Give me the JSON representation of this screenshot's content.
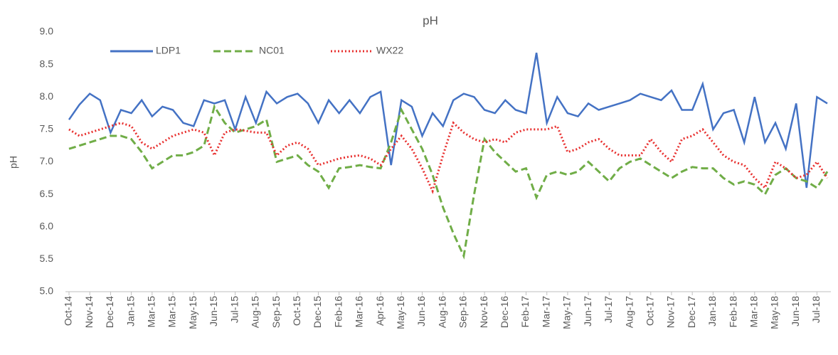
{
  "chart_data": {
    "type": "line",
    "title": "pH",
    "y_label": "pH",
    "categories": [
      "Oct-14",
      null,
      "Nov-14",
      null,
      "Dec-14",
      null,
      "Jan-15",
      null,
      "Mar-15",
      null,
      "Mar-15",
      null,
      "May-15",
      null,
      "Jun-15",
      null,
      "Jul-15",
      null,
      "Aug-15",
      null,
      "Sep-15",
      null,
      "Oct-15",
      null,
      "Dec-15",
      null,
      "Feb-16",
      null,
      "Mar-16",
      null,
      "Apr-16",
      null,
      "May-16",
      null,
      "Jun-16",
      null,
      "Aug-16",
      null,
      "Sep-16",
      null,
      "Nov-16",
      null,
      "Dec-16",
      null,
      "Feb-17",
      null,
      "Mar-17",
      null,
      "May-17",
      null,
      "Jun-17",
      null,
      "Jul-17",
      null,
      "Aug-17",
      null,
      "Oct-17",
      null,
      "Nov-17",
      null,
      "Dec-17",
      null,
      "Jan-18",
      null,
      "Feb-18",
      null,
      "Mar-18",
      null,
      "May-18",
      null,
      "Jun-18",
      null,
      "Jul-18",
      null
    ],
    "series": [
      {
        "name": "LDP1",
        "color": "#4472c4",
        "dash": "solid",
        "values": [
          7.65,
          7.88,
          8.05,
          7.95,
          7.45,
          7.8,
          7.75,
          7.95,
          7.7,
          7.85,
          7.8,
          7.6,
          7.55,
          7.95,
          7.9,
          7.95,
          7.5,
          8.0,
          7.6,
          8.08,
          7.9,
          8.0,
          8.05,
          7.9,
          7.6,
          7.95,
          7.75,
          7.95,
          7.75,
          8.0,
          8.08,
          6.95,
          7.95,
          7.85,
          7.4,
          7.75,
          7.55,
          7.95,
          8.05,
          8.0,
          7.8,
          7.75,
          7.95,
          7.8,
          7.75,
          8.68,
          7.6,
          8.0,
          7.75,
          7.7,
          7.9,
          7.8,
          7.85,
          7.9,
          7.95,
          8.05,
          8.0,
          7.95,
          8.1,
          7.8,
          7.8,
          8.2,
          7.5,
          7.75,
          7.8,
          7.3,
          8.0,
          7.3,
          7.6,
          7.2,
          7.9,
          6.6,
          8.0,
          7.9
        ]
      },
      {
        "name": "NC01",
        "color": "#70ad47",
        "dash": "dashed",
        "values": [
          7.2,
          7.25,
          7.3,
          7.35,
          7.4,
          7.4,
          7.35,
          7.15,
          6.9,
          7.0,
          7.1,
          7.1,
          7.15,
          7.25,
          7.85,
          7.6,
          7.45,
          7.5,
          7.55,
          7.65,
          7.0,
          7.05,
          7.1,
          6.95,
          6.85,
          6.6,
          6.9,
          6.92,
          6.95,
          6.92,
          6.9,
          7.3,
          7.8,
          7.5,
          7.2,
          6.8,
          6.3,
          5.9,
          5.55,
          6.5,
          7.35,
          7.15,
          7.0,
          6.85,
          6.9,
          6.45,
          6.8,
          6.85,
          6.8,
          6.85,
          7.0,
          6.85,
          6.7,
          6.9,
          7.0,
          7.05,
          6.95,
          6.85,
          6.75,
          6.85,
          6.92,
          6.9,
          6.9,
          6.75,
          6.65,
          6.7,
          6.65,
          6.5,
          6.8,
          6.9,
          6.75,
          6.7,
          6.6,
          6.85
        ]
      },
      {
        "name": "WX22",
        "color": "#e8302f",
        "dash": "dotted",
        "values": [
          7.5,
          7.4,
          7.45,
          7.5,
          7.55,
          7.6,
          7.55,
          7.3,
          7.2,
          7.3,
          7.4,
          7.45,
          7.5,
          7.45,
          7.1,
          7.45,
          7.5,
          7.48,
          7.45,
          7.45,
          7.1,
          7.25,
          7.3,
          7.2,
          6.95,
          7.0,
          7.05,
          7.08,
          7.1,
          7.05,
          6.95,
          7.2,
          7.4,
          7.2,
          6.9,
          6.55,
          7.1,
          7.6,
          7.45,
          7.35,
          7.3,
          7.35,
          7.3,
          7.45,
          7.5,
          7.5,
          7.5,
          7.55,
          7.15,
          7.2,
          7.3,
          7.35,
          7.2,
          7.1,
          7.1,
          7.1,
          7.35,
          7.15,
          7.0,
          7.35,
          7.4,
          7.5,
          7.3,
          7.1,
          7.0,
          6.95,
          6.75,
          6.6,
          7.0,
          6.9,
          6.75,
          6.8,
          7.0,
          6.75
        ]
      }
    ],
    "ylim": [
      5,
      9
    ],
    "yticks": [
      {
        "value": 5,
        "label": "5.0"
      },
      {
        "value": 5.5,
        "label": "5.5"
      },
      {
        "value": 6,
        "label": "6.0"
      },
      {
        "value": 6.5,
        "label": "6.5"
      },
      {
        "value": 7,
        "label": "7.0"
      },
      {
        "value": 7.5,
        "label": "7.5"
      },
      {
        "value": 8,
        "label": "8.0"
      },
      {
        "value": 8.5,
        "label": "8.5"
      },
      {
        "value": 9,
        "label": "9.0"
      }
    ],
    "grid": false,
    "legend": "top-left"
  }
}
